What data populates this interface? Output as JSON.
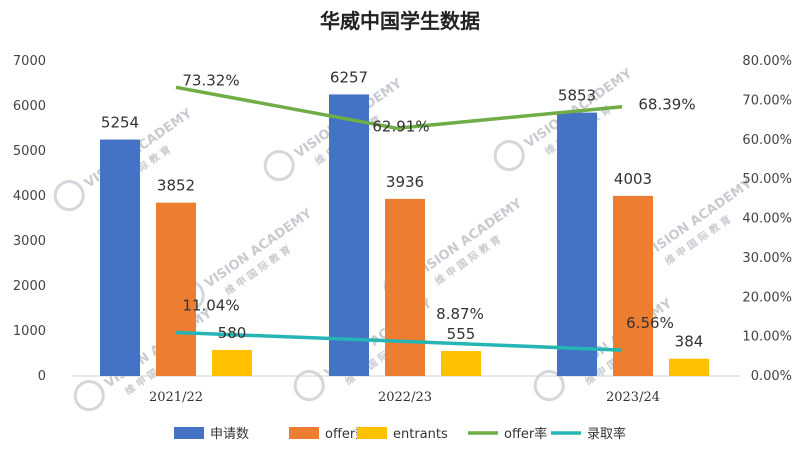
{
  "chart_data": {
    "type": "bar",
    "title": "华威中国学生数据",
    "categories": [
      "2021/22",
      "2022/23",
      "2023/24"
    ],
    "series": [
      {
        "name": "申请数",
        "kind": "bar",
        "axis": "left",
        "color": "#4472c4",
        "values": [
          5254,
          6257,
          5853
        ],
        "labels": [
          "5254",
          "6257",
          "5853"
        ]
      },
      {
        "name": "offer数",
        "kind": "bar",
        "axis": "left",
        "color": "#ed7d31",
        "values": [
          3852,
          3936,
          4003
        ],
        "labels": [
          "3852",
          "3936",
          "4003"
        ]
      },
      {
        "name": "entrants",
        "kind": "bar",
        "axis": "left",
        "color": "#ffc000",
        "values": [
          580,
          555,
          384
        ],
        "labels": [
          "580",
          "555",
          "384"
        ]
      },
      {
        "name": "offer率",
        "kind": "line",
        "axis": "right",
        "color": "#70ad47",
        "values": [
          73.32,
          62.91,
          68.39
        ],
        "labels": [
          "73.32%",
          "62.91%",
          "68.39%"
        ]
      },
      {
        "name": "录取率",
        "kind": "line",
        "axis": "right",
        "color": "#26b5b5",
        "values": [
          11.04,
          8.87,
          6.56
        ],
        "labels": [
          "11.04%",
          "8.87%",
          "6.56%"
        ]
      }
    ],
    "y_left": {
      "min": 0,
      "max": 7000,
      "ticks": [
        "0",
        "1000",
        "2000",
        "3000",
        "4000",
        "5000",
        "6000",
        "7000"
      ]
    },
    "y_right": {
      "min": 0,
      "max": 80,
      "ticks": [
        "0.00%",
        "10.00%",
        "20.00%",
        "30.00%",
        "40.00%",
        "50.00%",
        "60.00%",
        "70.00%",
        "80.00%"
      ]
    },
    "grid": false,
    "legend_position": "bottom"
  },
  "watermark": {
    "text": "VISION ACADEMY",
    "subtext": "维 申 国 际 教 育"
  }
}
